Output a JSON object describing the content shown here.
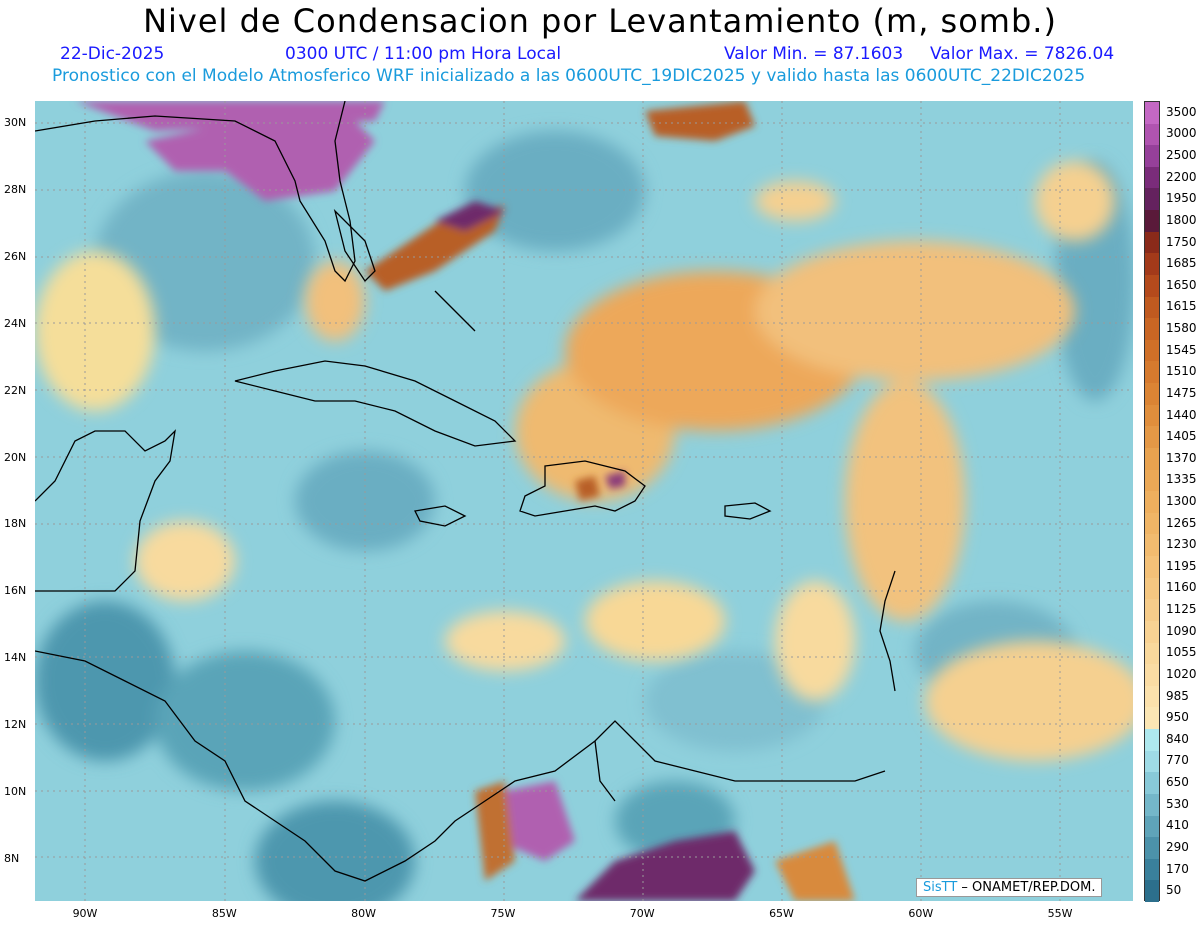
{
  "title": "Nivel de Condensacion por Levantamiento (m, somb.)",
  "date": "22-Dic-2025",
  "time": "0300 UTC / 11:00 pm Hora Local",
  "min_label": "Valor Min. = 87.1603",
  "max_label": "Valor Max. = 7826.04",
  "subtitle": "Pronostico con el Modelo Atmosferico WRF inicializado a las 0600UTC_19DIC2025 y valido hasta las  0600UTC_22DIC2025",
  "lat_labels": [
    "30N",
    "28N",
    "26N",
    "24N",
    "22N",
    "20N",
    "18N",
    "16N",
    "14N",
    "12N",
    "10N",
    "8N"
  ],
  "lon_labels": [
    "90W",
    "85W",
    "80W",
    "75W",
    "70W",
    "65W",
    "60W",
    "55W"
  ],
  "colorbar_labels": [
    "3500",
    "3000",
    "2500",
    "2200",
    "1950",
    "1800",
    "1750",
    "1685",
    "1650",
    "1615",
    "1580",
    "1545",
    "1510",
    "1475",
    "1440",
    "1405",
    "1370",
    "1335",
    "1300",
    "1265",
    "1230",
    "1195",
    "1160",
    "1125",
    "1090",
    "1055",
    "1020",
    "985",
    "950",
    "840",
    "770",
    "650",
    "530",
    "410",
    "290",
    "170",
    "50"
  ],
  "colorbar_colors": [
    "#c468c4",
    "#b054b0",
    "#96409a",
    "#7a2c7a",
    "#64225e",
    "#5a1a3a",
    "#8a2a1a",
    "#a33a1a",
    "#b44a1c",
    "#c05a20",
    "#c96624",
    "#d07028",
    "#d67a2e",
    "#db8434",
    "#e08e3c",
    "#e49846",
    "#e8a24f",
    "#eba856",
    "#eeaf5e",
    "#f0b566",
    "#f2bb6f",
    "#f4c178",
    "#f5c781",
    "#f6cc8a",
    "#f8d293",
    "#f9d89c",
    "#fadca4",
    "#fbe1ac",
    "#fbe6b4",
    "#aee8ee",
    "#9fdbe6",
    "#88c9d8",
    "#74b7c9",
    "#5fa4b9",
    "#4c92aa",
    "#3a809b",
    "#2c6f8c"
  ],
  "credit": {
    "sis": "SisTT",
    "rest": " – ONAMET/REP.DOM."
  }
}
